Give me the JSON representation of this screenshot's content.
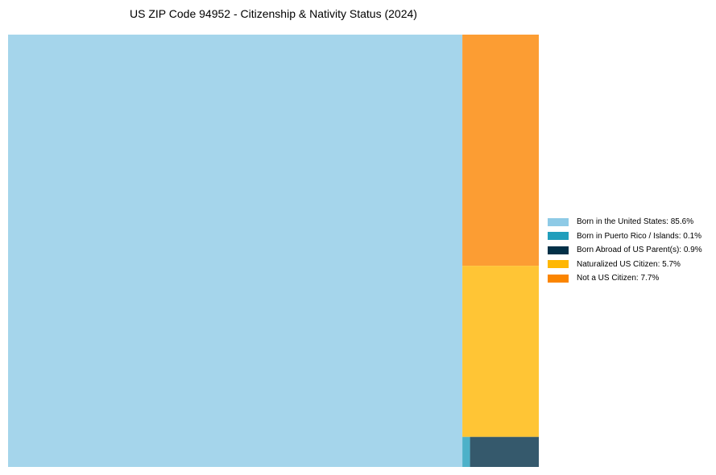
{
  "chart_data": {
    "type": "treemap",
    "title": "US ZIP Code 94952 - Citizenship & Nativity Status (2024)",
    "unit": "%",
    "items": [
      {
        "label": "Born in the United States",
        "value": 85.6,
        "color": "#8ecae6",
        "legend": "Born in the United States: 85.6%"
      },
      {
        "label": "Born in Puerto Rico / Islands",
        "value": 0.1,
        "color": "#219ebc",
        "legend": "Born in Puerto Rico / Islands: 0.1%"
      },
      {
        "label": "Born Abroad of US Parent(s)",
        "value": 0.9,
        "color": "#023047",
        "legend": "Born Abroad of US Parent(s): 0.9%"
      },
      {
        "label": "Naturalized US Citizen",
        "value": 5.7,
        "color": "#ffb703",
        "legend": "Naturalized US Citizen: 5.7%"
      },
      {
        "label": "Not a US Citizen",
        "value": 7.7,
        "color": "#fb8500",
        "legend": "Not a US Citizen: 7.7%"
      }
    ],
    "legend_position": "right"
  }
}
